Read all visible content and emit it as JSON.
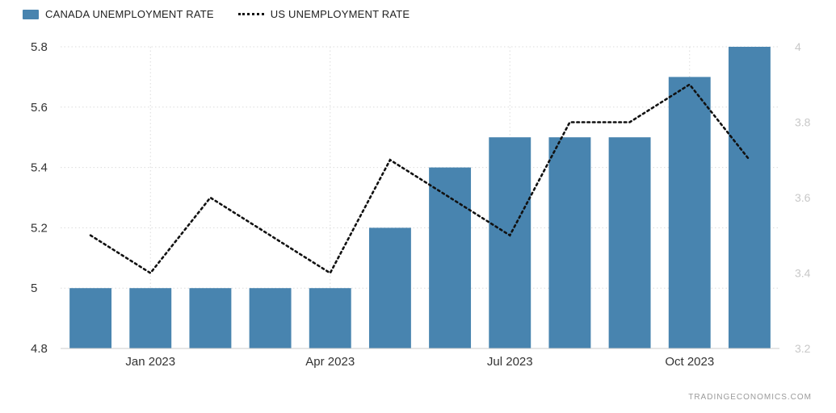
{
  "legend": [
    {
      "label": "CANADA UNEMPLOYMENT RATE",
      "type": "bar-swatch",
      "color": "#4884af"
    },
    {
      "label": "US UNEMPLOYMENT RATE",
      "type": "dotted-line-swatch",
      "color": "#111111"
    }
  ],
  "attribution": "TRADINGECONOMICS.COM",
  "colors": {
    "bar": "#4884af",
    "line": "#111111",
    "grid": "#dcdcdc",
    "axis_line": "#cccccc",
    "left_tick_text": "#333333",
    "right_tick_text": "#c8c8c8",
    "x_tick_text": "#333333"
  },
  "chart_data": {
    "type": "bar",
    "num_points": 12,
    "grid": true,
    "legend_position": "top-left",
    "series": [
      {
        "name": "CANADA UNEMPLOYMENT RATE",
        "type": "bar",
        "axis": "left",
        "color": "#4884af",
        "values": [
          5,
          5,
          5,
          5,
          5,
          5.2,
          5.4,
          5.5,
          5.5,
          5.5,
          5.7,
          5.8
        ]
      },
      {
        "name": "US UNEMPLOYMENT RATE",
        "type": "line",
        "style": "dotted",
        "axis": "right",
        "color": "#111111",
        "values": [
          3.5,
          3.4,
          3.6,
          3.5,
          3.4,
          3.7,
          3.6,
          3.5,
          3.8,
          3.8,
          3.9,
          3.7
        ]
      }
    ],
    "x_ticks": [
      {
        "index": 1,
        "label": "Jan 2023"
      },
      {
        "index": 4,
        "label": "Apr 2023"
      },
      {
        "index": 7,
        "label": "Jul 2023"
      },
      {
        "index": 10,
        "label": "Oct 2023"
      }
    ],
    "left_axis": {
      "min": 4.8,
      "max": 5.8,
      "ticks": [
        "4.8",
        "5",
        "5.2",
        "5.4",
        "5.6",
        "5.8"
      ]
    },
    "right_axis": {
      "min": 3.2,
      "max": 4,
      "ticks": [
        "3.2",
        "3.4",
        "3.6",
        "3.8",
        "4"
      ]
    }
  }
}
